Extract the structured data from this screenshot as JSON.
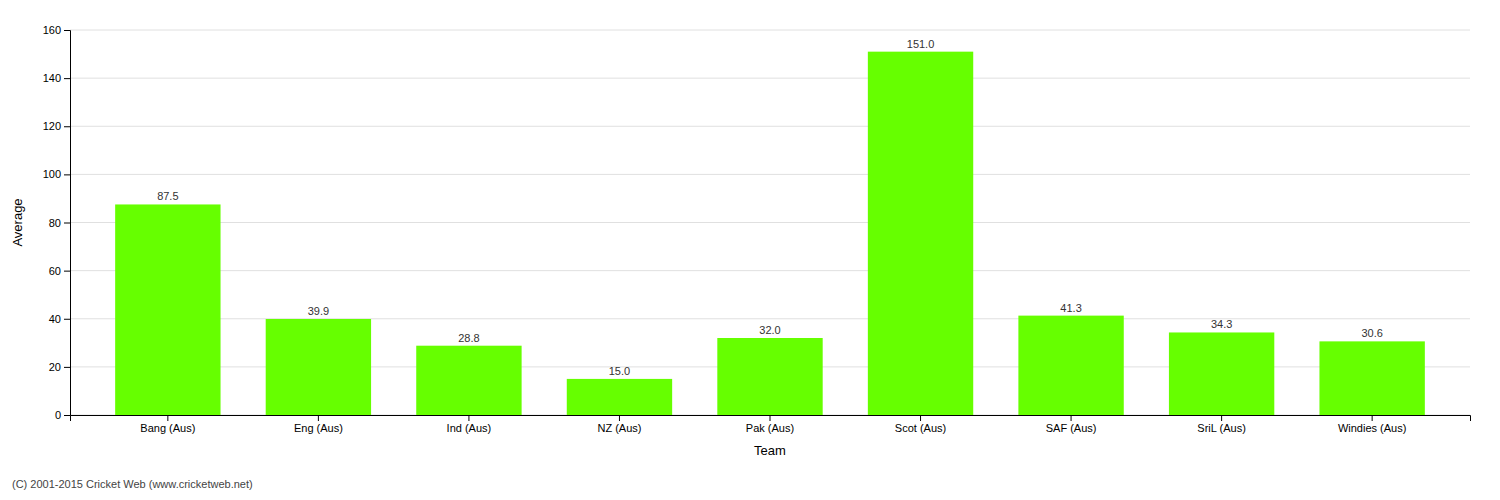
{
  "chart_data": {
    "type": "bar",
    "categories": [
      "Bang (Aus)",
      "Eng (Aus)",
      "Ind (Aus)",
      "NZ (Aus)",
      "Pak (Aus)",
      "Scot (Aus)",
      "SAF (Aus)",
      "SriL (Aus)",
      "Windies (Aus)"
    ],
    "values": [
      87.5,
      39.9,
      28.8,
      15.0,
      32.0,
      151.0,
      41.3,
      34.3,
      30.6
    ],
    "value_labels": [
      "87.5",
      "39.9",
      "28.8",
      "15.0",
      "32.0",
      "151.0",
      "41.3",
      "34.3",
      "30.6"
    ],
    "data_labels": true,
    "color": "#66ff00",
    "xlabel": "Team",
    "ylabel": "Average",
    "ylim": [
      0,
      160
    ],
    "yticks": [
      0,
      20,
      40,
      60,
      80,
      100,
      120,
      140,
      160
    ],
    "grid": true,
    "annotations": [
      "(C) 2001-2015 Cricket Web (www.cricketweb.net)"
    ]
  }
}
